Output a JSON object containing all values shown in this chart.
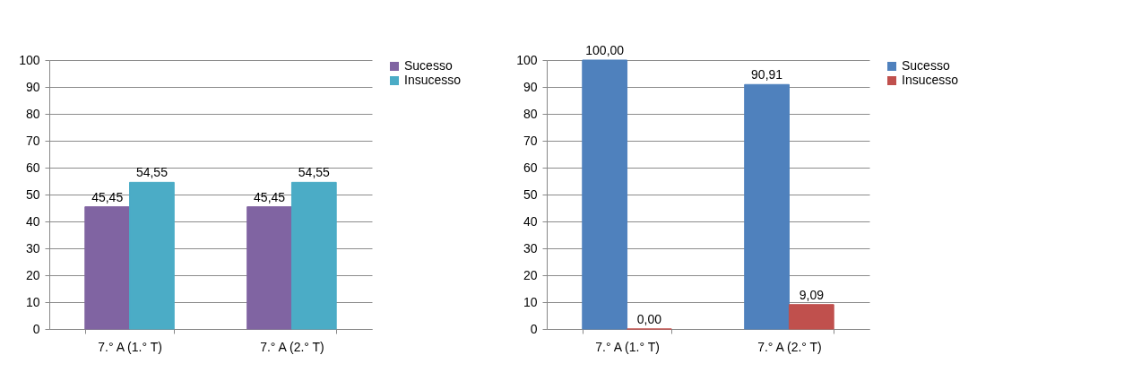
{
  "chart_data": [
    {
      "type": "bar",
      "categories": [
        "7.° A (1.° T)",
        "7.° A (2.° T)"
      ],
      "ylim": [
        0,
        100
      ],
      "yticks": [
        0,
        10,
        20,
        30,
        40,
        50,
        60,
        70,
        80,
        90,
        100
      ],
      "grid": "y",
      "legend": "right",
      "series": [
        {
          "name": "Sucesso",
          "color": "#8064a2",
          "values": [
            45.45,
            45.45
          ],
          "value_labels": [
            "45,45",
            "45,45"
          ]
        },
        {
          "name": "Insucesso",
          "color": "#4bacc6",
          "values": [
            54.55,
            54.55
          ],
          "value_labels": [
            "54,55",
            "54,55"
          ]
        }
      ]
    },
    {
      "type": "bar",
      "categories": [
        "7.° A (1.° T)",
        "7.° A (2.° T)"
      ],
      "ylim": [
        0,
        100
      ],
      "yticks": [
        0,
        10,
        20,
        30,
        40,
        50,
        60,
        70,
        80,
        90,
        100
      ],
      "grid": "y",
      "legend": "right",
      "series": [
        {
          "name": "Sucesso",
          "color": "#4f81bd",
          "values": [
            100,
            90.91
          ],
          "value_labels": [
            "100,00",
            "90,91"
          ]
        },
        {
          "name": "Insucesso",
          "color": "#c0504d",
          "values": [
            0,
            9.09
          ],
          "value_labels": [
            "0,00",
            "9,09"
          ]
        }
      ]
    }
  ]
}
